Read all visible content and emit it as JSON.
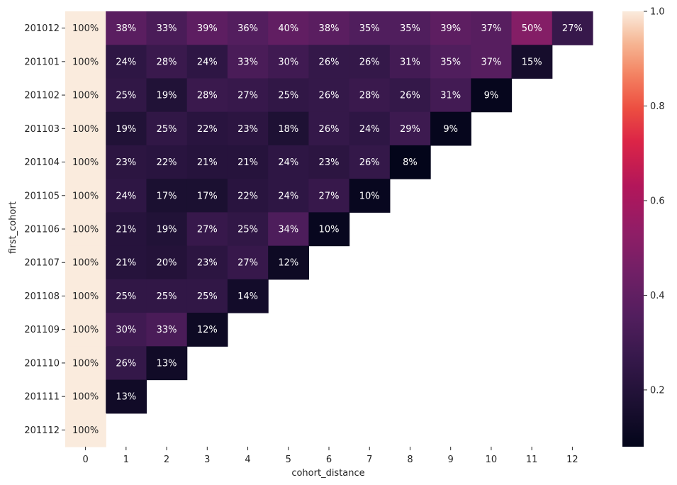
{
  "chart_data": {
    "type": "heatmap",
    "xlabel": "cohort_distance",
    "ylabel": "first_cohort",
    "x": [
      "0",
      "1",
      "2",
      "3",
      "4",
      "5",
      "6",
      "7",
      "8",
      "9",
      "10",
      "11",
      "12"
    ],
    "y": [
      "201012",
      "201101",
      "201102",
      "201103",
      "201104",
      "201105",
      "201106",
      "201107",
      "201108",
      "201109",
      "201110",
      "201111",
      "201112"
    ],
    "values": [
      [
        1.0,
        0.38,
        0.33,
        0.39,
        0.36,
        0.4,
        0.38,
        0.35,
        0.35,
        0.39,
        0.37,
        0.5,
        0.27
      ],
      [
        1.0,
        0.24,
        0.28,
        0.24,
        0.33,
        0.3,
        0.26,
        0.26,
        0.31,
        0.35,
        0.37,
        0.15,
        null
      ],
      [
        1.0,
        0.25,
        0.19,
        0.28,
        0.27,
        0.25,
        0.26,
        0.28,
        0.26,
        0.31,
        0.09,
        null,
        null
      ],
      [
        1.0,
        0.19,
        0.25,
        0.22,
        0.23,
        0.18,
        0.26,
        0.24,
        0.29,
        0.09,
        null,
        null,
        null
      ],
      [
        1.0,
        0.23,
        0.22,
        0.21,
        0.21,
        0.24,
        0.23,
        0.26,
        0.08,
        null,
        null,
        null,
        null
      ],
      [
        1.0,
        0.24,
        0.17,
        0.17,
        0.22,
        0.24,
        0.27,
        0.1,
        null,
        null,
        null,
        null,
        null
      ],
      [
        1.0,
        0.21,
        0.19,
        0.27,
        0.25,
        0.34,
        0.1,
        null,
        null,
        null,
        null,
        null,
        null
      ],
      [
        1.0,
        0.21,
        0.2,
        0.23,
        0.27,
        0.12,
        null,
        null,
        null,
        null,
        null,
        null,
        null
      ],
      [
        1.0,
        0.25,
        0.25,
        0.25,
        0.14,
        null,
        null,
        null,
        null,
        null,
        null,
        null,
        null
      ],
      [
        1.0,
        0.3,
        0.33,
        0.12,
        null,
        null,
        null,
        null,
        null,
        null,
        null,
        null,
        null
      ],
      [
        1.0,
        0.26,
        0.13,
        null,
        null,
        null,
        null,
        null,
        null,
        null,
        null,
        null,
        null
      ],
      [
        1.0,
        0.13,
        null,
        null,
        null,
        null,
        null,
        null,
        null,
        null,
        null,
        null,
        null
      ],
      [
        1.0,
        null,
        null,
        null,
        null,
        null,
        null,
        null,
        null,
        null,
        null,
        null,
        null
      ]
    ],
    "cell_labels": [
      [
        "100%",
        "38%",
        "33%",
        "39%",
        "36%",
        "40%",
        "38%",
        "35%",
        "35%",
        "39%",
        "37%",
        "50%",
        "27%"
      ],
      [
        "100%",
        "24%",
        "28%",
        "24%",
        "33%",
        "30%",
        "26%",
        "26%",
        "31%",
        "35%",
        "37%",
        "15%",
        null
      ],
      [
        "100%",
        "25%",
        "19%",
        "28%",
        "27%",
        "25%",
        "26%",
        "28%",
        "26%",
        "31%",
        "9%",
        null,
        null
      ],
      [
        "100%",
        "19%",
        "25%",
        "22%",
        "23%",
        "18%",
        "26%",
        "24%",
        "29%",
        "9%",
        null,
        null,
        null
      ],
      [
        "100%",
        "23%",
        "22%",
        "21%",
        "21%",
        "24%",
        "23%",
        "26%",
        "8%",
        null,
        null,
        null,
        null
      ],
      [
        "100%",
        "24%",
        "17%",
        "17%",
        "22%",
        "24%",
        "27%",
        "10%",
        null,
        null,
        null,
        null,
        null
      ],
      [
        "100%",
        "21%",
        "19%",
        "27%",
        "25%",
        "34%",
        "10%",
        null,
        null,
        null,
        null,
        null,
        null
      ],
      [
        "100%",
        "21%",
        "20%",
        "23%",
        "27%",
        "12%",
        null,
        null,
        null,
        null,
        null,
        null,
        null
      ],
      [
        "100%",
        "25%",
        "25%",
        "25%",
        "14%",
        null,
        null,
        null,
        null,
        null,
        null,
        null,
        null
      ],
      [
        "100%",
        "30%",
        "33%",
        "12%",
        null,
        null,
        null,
        null,
        null,
        null,
        null,
        null,
        null
      ],
      [
        "100%",
        "26%",
        "13%",
        null,
        null,
        null,
        null,
        null,
        null,
        null,
        null,
        null,
        null
      ],
      [
        "100%",
        "13%",
        null,
        null,
        null,
        null,
        null,
        null,
        null,
        null,
        null,
        null,
        null
      ],
      [
        "100%",
        null,
        null,
        null,
        null,
        null,
        null,
        null,
        null,
        null,
        null,
        null,
        null
      ]
    ],
    "colorbar": {
      "colormap": "rocket",
      "vmin": 0.08,
      "vmax": 1.0,
      "ticks": [
        "0.2",
        "0.4",
        "0.6",
        "0.8",
        "1.0"
      ],
      "tick_values": [
        0.2,
        0.4,
        0.6,
        0.8,
        1.0
      ]
    },
    "grid": false,
    "legend_placement": "right"
  }
}
